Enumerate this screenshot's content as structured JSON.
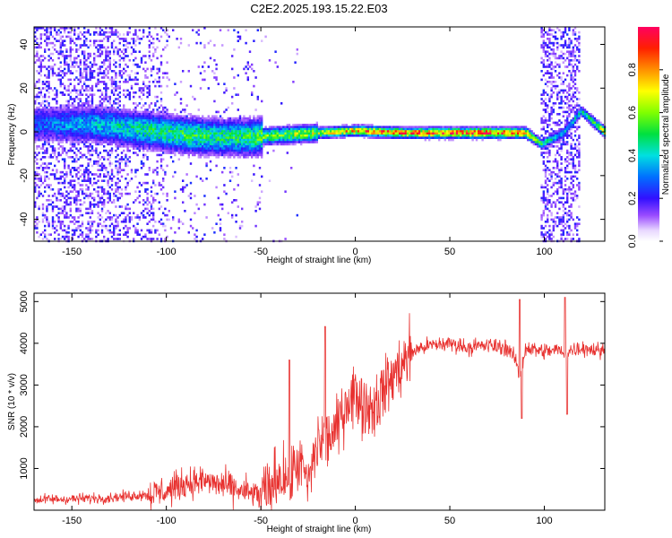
{
  "title": "C2E2.2025.193.15.22.E03",
  "chart_data": [
    {
      "type": "heatmap",
      "xlabel": "Height of straight line (km)",
      "ylabel": "Frequency (Hz)",
      "xlim": [
        -170,
        132
      ],
      "ylim": [
        -50,
        48
      ],
      "xticks": [
        -150,
        -100,
        -50,
        0,
        50,
        100
      ],
      "yticks": [
        -40,
        -20,
        0,
        20,
        40
      ],
      "colorbar": {
        "label": "Normalized spectral amplitude",
        "range": [
          0,
          1
        ],
        "ticks": [
          "0.0",
          "0.2",
          "0.4",
          "0.6",
          "0.8"
        ],
        "tick_values": [
          0,
          0.2,
          0.4,
          0.6,
          0.8
        ]
      },
      "ridge": [
        {
          "x": -170,
          "f": 4,
          "amp": 0.3
        },
        {
          "x": -140,
          "f": 4,
          "amp": 0.4
        },
        {
          "x": -110,
          "f": 1,
          "amp": 0.5
        },
        {
          "x": -90,
          "f": -1,
          "amp": 0.55
        },
        {
          "x": -70,
          "f": -2,
          "amp": 0.5
        },
        {
          "x": -55,
          "f": -2,
          "amp": 0.55
        },
        {
          "x": -40,
          "f": -1,
          "amp": 0.65
        },
        {
          "x": -20,
          "f": 0,
          "amp": 0.7
        },
        {
          "x": 0,
          "f": 1,
          "amp": 0.85
        },
        {
          "x": 25,
          "f": 0,
          "amp": 0.9
        },
        {
          "x": 50,
          "f": 0,
          "amp": 0.95
        },
        {
          "x": 75,
          "f": 0,
          "amp": 0.95
        },
        {
          "x": 90,
          "f": 0,
          "amp": 0.85
        },
        {
          "x": 98,
          "f": -5,
          "amp": 0.5
        },
        {
          "x": 110,
          "f": 0,
          "amp": 0.4
        },
        {
          "x": 119,
          "f": 10,
          "amp": 0.45
        },
        {
          "x": 132,
          "f": 0,
          "amp": 0.75
        }
      ]
    },
    {
      "type": "line",
      "xlabel": "Height of straight line (km)",
      "ylabel": "SNR (10 * v/v)",
      "xlim": [
        -170,
        132
      ],
      "ylim": [
        0,
        5200
      ],
      "xticks": [
        -150,
        -100,
        -50,
        0,
        50,
        100
      ],
      "yticks": [
        1000,
        2000,
        3000,
        4000,
        5000
      ],
      "color": "#e8312f",
      "x": [
        -170,
        -150,
        -130,
        -110,
        -100,
        -90,
        -80,
        -70,
        -60,
        -50,
        -45,
        -40,
        -35,
        -30,
        -25,
        -20,
        -15,
        -10,
        -5,
        0,
        5,
        10,
        15,
        20,
        25,
        30,
        35,
        40,
        50,
        60,
        70,
        80,
        85,
        87,
        90,
        100,
        108,
        110,
        112,
        120,
        132
      ],
      "y": [
        250,
        270,
        300,
        380,
        450,
        650,
        700,
        600,
        450,
        350,
        500,
        900,
        700,
        1200,
        600,
        1600,
        1700,
        1900,
        2600,
        2800,
        2500,
        2500,
        2900,
        3200,
        3500,
        3800,
        3900,
        3950,
        4000,
        3900,
        3950,
        3900,
        3600,
        3100,
        3900,
        3800,
        3850,
        3700,
        3800,
        3900,
        3800
      ],
      "peaks": [
        {
          "x": -35,
          "y": 3600
        },
        {
          "x": -16,
          "y": 4400
        },
        {
          "x": 87,
          "y": 5050
        },
        {
          "x": 88,
          "y": 2200
        },
        {
          "x": 111,
          "y": 5100
        },
        {
          "x": 112,
          "y": 2300
        }
      ]
    }
  ]
}
